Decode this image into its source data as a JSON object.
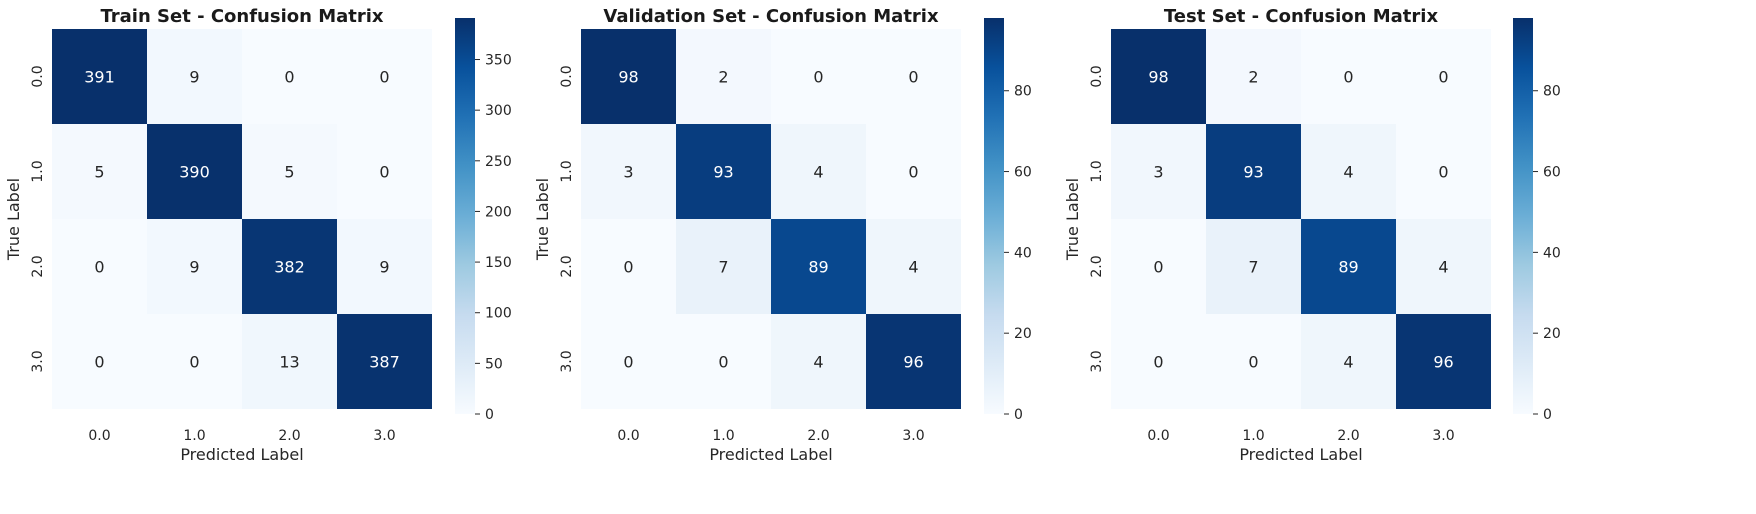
{
  "chart_data": [
    {
      "type": "heatmap",
      "title": "Train Set - Confusion Matrix",
      "xlabel": "Predicted Label",
      "ylabel": "True Label",
      "x_categories": [
        "0.0",
        "1.0",
        "2.0",
        "3.0"
      ],
      "y_categories": [
        "0.0",
        "1.0",
        "2.0",
        "3.0"
      ],
      "values": [
        [
          391,
          9,
          0,
          0
        ],
        [
          5,
          390,
          5,
          0
        ],
        [
          0,
          9,
          382,
          9
        ],
        [
          0,
          0,
          13,
          387
        ]
      ],
      "colormap": "Blues",
      "colorbar": {
        "min": 0,
        "max": 391,
        "ticks": [
          "0",
          "50",
          "100",
          "150",
          "200",
          "250",
          "300",
          "350"
        ]
      }
    },
    {
      "type": "heatmap",
      "title": "Validation Set - Confusion Matrix",
      "xlabel": "Predicted Label",
      "ylabel": "True Label",
      "x_categories": [
        "0.0",
        "1.0",
        "2.0",
        "3.0"
      ],
      "y_categories": [
        "0.0",
        "1.0",
        "2.0",
        "3.0"
      ],
      "values": [
        [
          98,
          2,
          0,
          0
        ],
        [
          3,
          93,
          4,
          0
        ],
        [
          0,
          7,
          89,
          4
        ],
        [
          0,
          0,
          4,
          96
        ]
      ],
      "colormap": "Blues",
      "colorbar": {
        "min": 0,
        "max": 98,
        "ticks": [
          "0",
          "20",
          "40",
          "60",
          "80"
        ]
      }
    },
    {
      "type": "heatmap",
      "title": "Test Set - Confusion Matrix",
      "xlabel": "Predicted Label",
      "ylabel": "True Label",
      "x_categories": [
        "0.0",
        "1.0",
        "2.0",
        "3.0"
      ],
      "y_categories": [
        "0.0",
        "1.0",
        "2.0",
        "3.0"
      ],
      "values": [
        [
          98,
          2,
          0,
          0
        ],
        [
          3,
          93,
          4,
          0
        ],
        [
          0,
          7,
          89,
          4
        ],
        [
          0,
          0,
          4,
          96
        ]
      ],
      "colormap": "Blues",
      "colorbar": {
        "min": 0,
        "max": 98,
        "ticks": [
          "0",
          "20",
          "40",
          "60",
          "80"
        ]
      }
    }
  ]
}
